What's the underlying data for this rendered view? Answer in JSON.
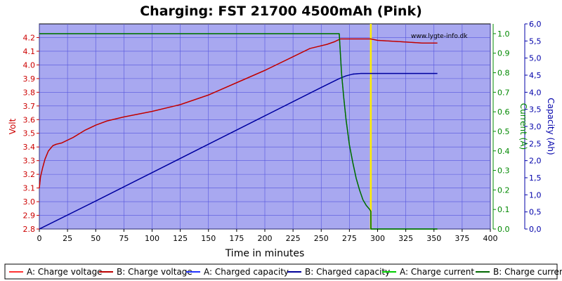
{
  "chart_data": {
    "type": "line",
    "title": "Charging: FST 21700 4500mAh (Pink)",
    "watermark": "www.lygte-info.dk",
    "xlabel": "Time in minutes",
    "xlim": [
      0,
      400
    ],
    "xticks": [
      0,
      25,
      50,
      75,
      100,
      125,
      150,
      175,
      200,
      225,
      250,
      275,
      300,
      325,
      350,
      375,
      400
    ],
    "grid": true,
    "plot_background": "#a8a8f0",
    "axes": {
      "left": {
        "label": "Volt",
        "color": "#cc0000",
        "range": [
          2.8,
          4.3
        ],
        "ticks": [
          "2.8",
          "2.9",
          "3.0",
          "3.1",
          "3.2",
          "3.3",
          "3.4",
          "3.5",
          "3.6",
          "3.7",
          "3.8",
          "3.9",
          "4.0",
          "4.1",
          "4.2"
        ]
      },
      "right1": {
        "label": "Current (A)",
        "color": "#008800",
        "range": [
          0,
          1.05
        ],
        "ticks": [
          "0.0",
          "0.1",
          "0.2",
          "0.3",
          "0.4",
          "0.5",
          "0.6",
          "0.7",
          "0.8",
          "0.9",
          "1.0"
        ]
      },
      "right2": {
        "label": "Capacity (Ah)",
        "color": "#0000aa",
        "range": [
          0,
          6.0
        ],
        "ticks": [
          "0,0",
          "0,5",
          "1,0",
          "1,5",
          "2,0",
          "2,5",
          "3,0",
          "3,5",
          "4,0",
          "4,5",
          "5,0",
          "5,5",
          "6,0"
        ]
      }
    },
    "marker": {
      "x": 294,
      "color": "#ffee00"
    },
    "series": [
      {
        "name": "A: Charge voltage",
        "axis": "left",
        "color": "#ff3333",
        "x": [
          0,
          1,
          3,
          5,
          8,
          12,
          15,
          20,
          25,
          30,
          40,
          50,
          60,
          75,
          100,
          125,
          150,
          175,
          200,
          225,
          240,
          255,
          262,
          267,
          270,
          280,
          290,
          294,
          300,
          320,
          340,
          353
        ],
        "y": [
          3.1,
          3.18,
          3.25,
          3.31,
          3.37,
          3.41,
          3.42,
          3.43,
          3.45,
          3.47,
          3.52,
          3.56,
          3.59,
          3.62,
          3.66,
          3.71,
          3.78,
          3.87,
          3.96,
          4.06,
          4.12,
          4.15,
          4.17,
          4.19,
          4.19,
          4.19,
          4.19,
          4.19,
          4.18,
          4.17,
          4.16,
          4.16
        ]
      },
      {
        "name": "B: Charge voltage",
        "axis": "left",
        "color": "#bb0000",
        "x": [
          0,
          1,
          3,
          5,
          8,
          12,
          15,
          20,
          25,
          30,
          40,
          50,
          60,
          75,
          100,
          125,
          150,
          175,
          200,
          225,
          240,
          255,
          262,
          267,
          270,
          280,
          290,
          294,
          300,
          320,
          340,
          353
        ],
        "y": [
          3.1,
          3.18,
          3.25,
          3.31,
          3.37,
          3.41,
          3.42,
          3.43,
          3.45,
          3.47,
          3.52,
          3.56,
          3.59,
          3.62,
          3.66,
          3.71,
          3.78,
          3.87,
          3.96,
          4.06,
          4.12,
          4.15,
          4.17,
          4.19,
          4.19,
          4.19,
          4.19,
          4.19,
          4.18,
          4.17,
          4.16,
          4.16
        ]
      },
      {
        "name": "A: Charged capacity",
        "axis": "right2",
        "color": "#2233ff",
        "x": [
          0,
          50,
          100,
          150,
          200,
          250,
          266,
          272,
          278,
          285,
          294,
          320,
          353
        ],
        "y": [
          0,
          0.82,
          1.65,
          2.48,
          3.31,
          4.14,
          4.4,
          4.48,
          4.53,
          4.55,
          4.55,
          4.55,
          4.55
        ]
      },
      {
        "name": "B: Charged capacity",
        "axis": "right2",
        "color": "#000099",
        "x": [
          0,
          50,
          100,
          150,
          200,
          250,
          266,
          272,
          278,
          285,
          294,
          320,
          353
        ],
        "y": [
          0,
          0.82,
          1.65,
          2.48,
          3.31,
          4.14,
          4.4,
          4.48,
          4.53,
          4.55,
          4.55,
          4.55,
          4.55
        ]
      },
      {
        "name": "A: Charge current",
        "axis": "right1",
        "color": "#00cc00",
        "x": [
          0,
          50,
          100,
          150,
          200,
          250,
          266,
          267,
          268,
          270,
          272,
          275,
          278,
          281,
          284,
          287,
          290,
          293,
          294,
          294.1,
          353
        ],
        "y": [
          1.0,
          1.0,
          1.0,
          1.0,
          1.0,
          1.0,
          1.0,
          0.9,
          0.8,
          0.67,
          0.56,
          0.43,
          0.34,
          0.26,
          0.2,
          0.15,
          0.12,
          0.1,
          0.09,
          0.0,
          0.0
        ]
      },
      {
        "name": "B: Charge current",
        "axis": "right1",
        "color": "#006600",
        "x": [
          0,
          50,
          100,
          150,
          200,
          250,
          266,
          267,
          268,
          270,
          272,
          275,
          278,
          281,
          284,
          287,
          290,
          293,
          294,
          294.1,
          353
        ],
        "y": [
          1.0,
          1.0,
          1.0,
          1.0,
          1.0,
          1.0,
          1.0,
          0.9,
          0.8,
          0.67,
          0.56,
          0.43,
          0.34,
          0.26,
          0.2,
          0.15,
          0.12,
          0.1,
          0.09,
          0.0,
          0.0
        ]
      }
    ],
    "legend": {
      "placement": "bottom",
      "items": [
        {
          "name": "A: Charge voltage",
          "color": "#ff3333"
        },
        {
          "name": "B: Charge voltage",
          "color": "#bb0000"
        },
        {
          "name": "A: Charged capacity",
          "color": "#2233ff"
        },
        {
          "name": "B: Charged capacity",
          "color": "#000099"
        },
        {
          "name": "A: Charge current",
          "color": "#00cc00"
        },
        {
          "name": "B: Charge current",
          "color": "#006600"
        }
      ]
    }
  }
}
